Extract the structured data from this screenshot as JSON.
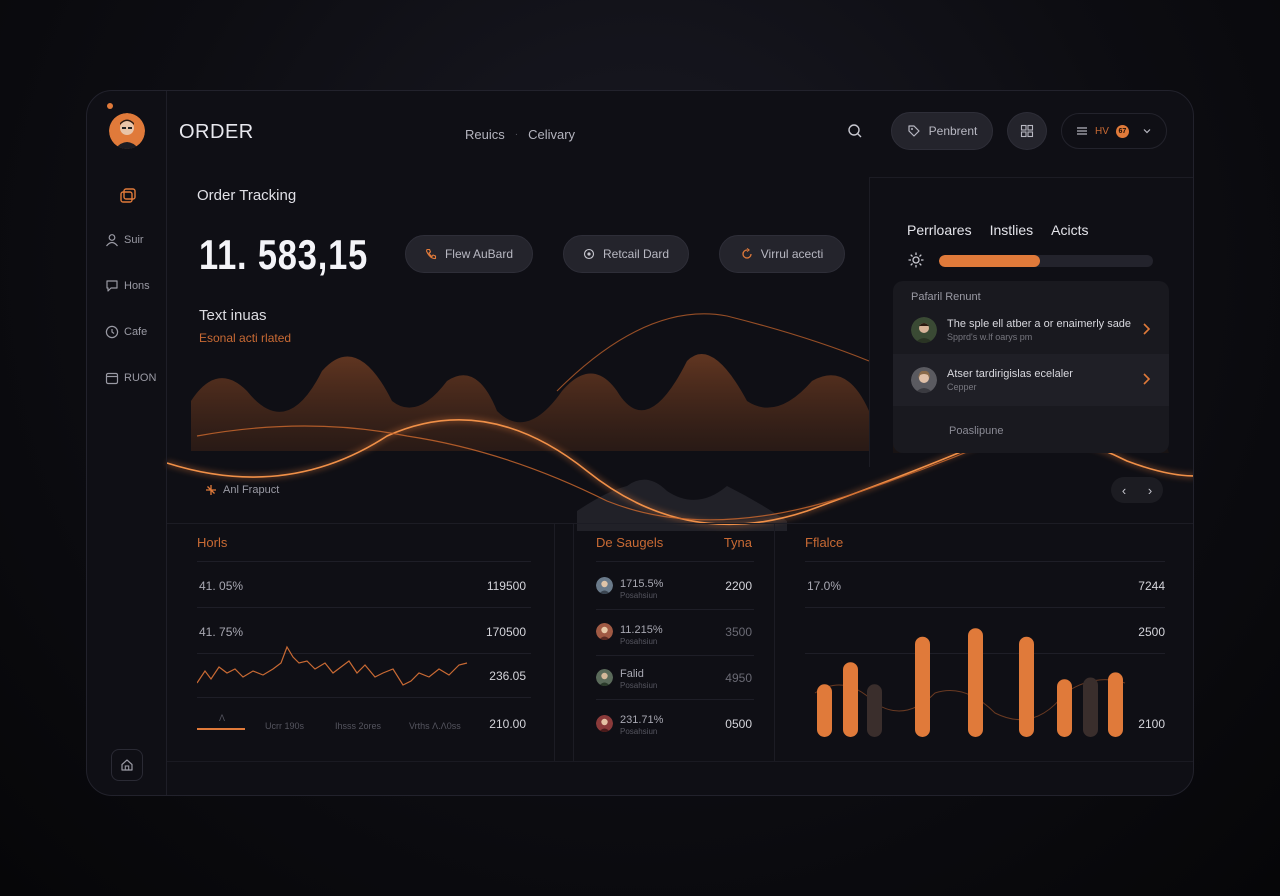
{
  "app": {
    "logo": "ORDER"
  },
  "sidebar": {
    "items": [
      {
        "label": "Suir",
        "icon": "user-icon"
      },
      {
        "label": "Hons",
        "icon": "chat-icon"
      },
      {
        "label": "Cafe",
        "icon": "clock-icon"
      },
      {
        "label": "RUON",
        "icon": "calendar-icon"
      }
    ]
  },
  "topnav": {
    "items": [
      "Reuics",
      "Celivary"
    ],
    "separator": "·"
  },
  "header": {
    "pill_label": "Penbrent",
    "user_label": "HV",
    "badge": "67"
  },
  "main": {
    "section_title": "Order Tracking",
    "big_number": "11. 583,15",
    "actions": [
      {
        "label": "Flew AuBard",
        "icon": "phone-icon"
      },
      {
        "label": "Retcail Dard",
        "icon": "target-icon"
      },
      {
        "label": "Virrul acecti",
        "icon": "sync-icon"
      }
    ],
    "wave_title": "Text inuas",
    "wave_caption": "Esonal acti rlated",
    "project_label": "Anl Frapuct"
  },
  "right": {
    "tabs": [
      "Perrloares",
      "Instlies",
      "Acicts"
    ],
    "progress": 0.47,
    "card_header": "Pafaril Renunt",
    "rows": [
      {
        "title": "The sple ell atber a or enaimerly sade",
        "sub": "Spprd's w.lf oarys pm"
      },
      {
        "title": "Atser tardirigislas ecelaler",
        "sub": "Cepper"
      }
    ],
    "footer": "Poaslipune"
  },
  "pager": {
    "prev": "‹",
    "next": "›"
  },
  "panels": {
    "left": {
      "title": "Horls",
      "rows": [
        {
          "label": "41. 05%",
          "value": "119500"
        },
        {
          "label": "41. 75%",
          "value": "170500"
        },
        {
          "label": "",
          "value": "236.05"
        },
        {
          "label": "",
          "value": "210.00"
        }
      ],
      "axis": [
        "Λ",
        "Ucrr 190s",
        "Ihsss 2ores",
        "Vrths Λ.Λ0ss"
      ]
    },
    "middle": {
      "title": "De Saugels",
      "title_right": "Tyna",
      "rows": [
        {
          "label": "1715.5%",
          "sub": "Posahsiun",
          "value": "2200"
        },
        {
          "label": "11.215%",
          "sub": "Posahsiun",
          "value": "3500"
        },
        {
          "label": "Falid",
          "sub": "Posahsiun",
          "value": "4950"
        },
        {
          "label": "231.71%",
          "sub": "Posahsiun",
          "value": "0500"
        }
      ]
    },
    "right": {
      "title": "Fflalce",
      "label": "17.0%",
      "values": [
        "7244",
        "2500",
        "2100"
      ]
    }
  },
  "chart_data": {
    "type": "bar",
    "values": [
      62,
      88,
      62,
      118,
      128,
      118,
      68,
      70,
      76
    ],
    "highlighted": [
      true,
      true,
      false,
      true,
      true,
      true,
      true,
      false,
      true
    ]
  },
  "colors": {
    "accent": "#e07a3a",
    "bg": "#0f0f15",
    "panel": "#19191f"
  }
}
